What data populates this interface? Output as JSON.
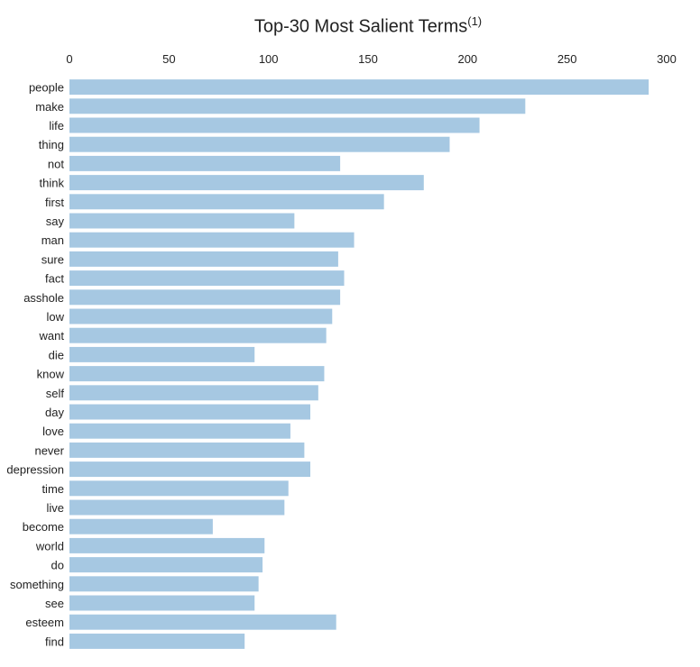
{
  "chart_data": {
    "type": "bar",
    "orientation": "horizontal",
    "title": "Top-30 Most Salient Terms",
    "title_superscript": "(1)",
    "axis_position": "top",
    "xlim": [
      0,
      300
    ],
    "xticks": [
      "0",
      "50",
      "100",
      "150",
      "200",
      "250",
      "300"
    ],
    "grid": false,
    "bar_color": "#a6c8e2",
    "categories": [
      "people",
      "make",
      "life",
      "thing",
      "not",
      "think",
      "first",
      "say",
      "man",
      "sure",
      "fact",
      "asshole",
      "low",
      "want",
      "die",
      "know",
      "self",
      "day",
      "love",
      "never",
      "depression",
      "time",
      "live",
      "become",
      "world",
      "do",
      "something",
      "see",
      "esteem",
      "find"
    ],
    "values": [
      291,
      229,
      206,
      191,
      136,
      178,
      158,
      113,
      143,
      135,
      138,
      136,
      132,
      129,
      93,
      128,
      125,
      121,
      111,
      118,
      121,
      110,
      108,
      72,
      98,
      97,
      95,
      93,
      134,
      88
    ]
  }
}
